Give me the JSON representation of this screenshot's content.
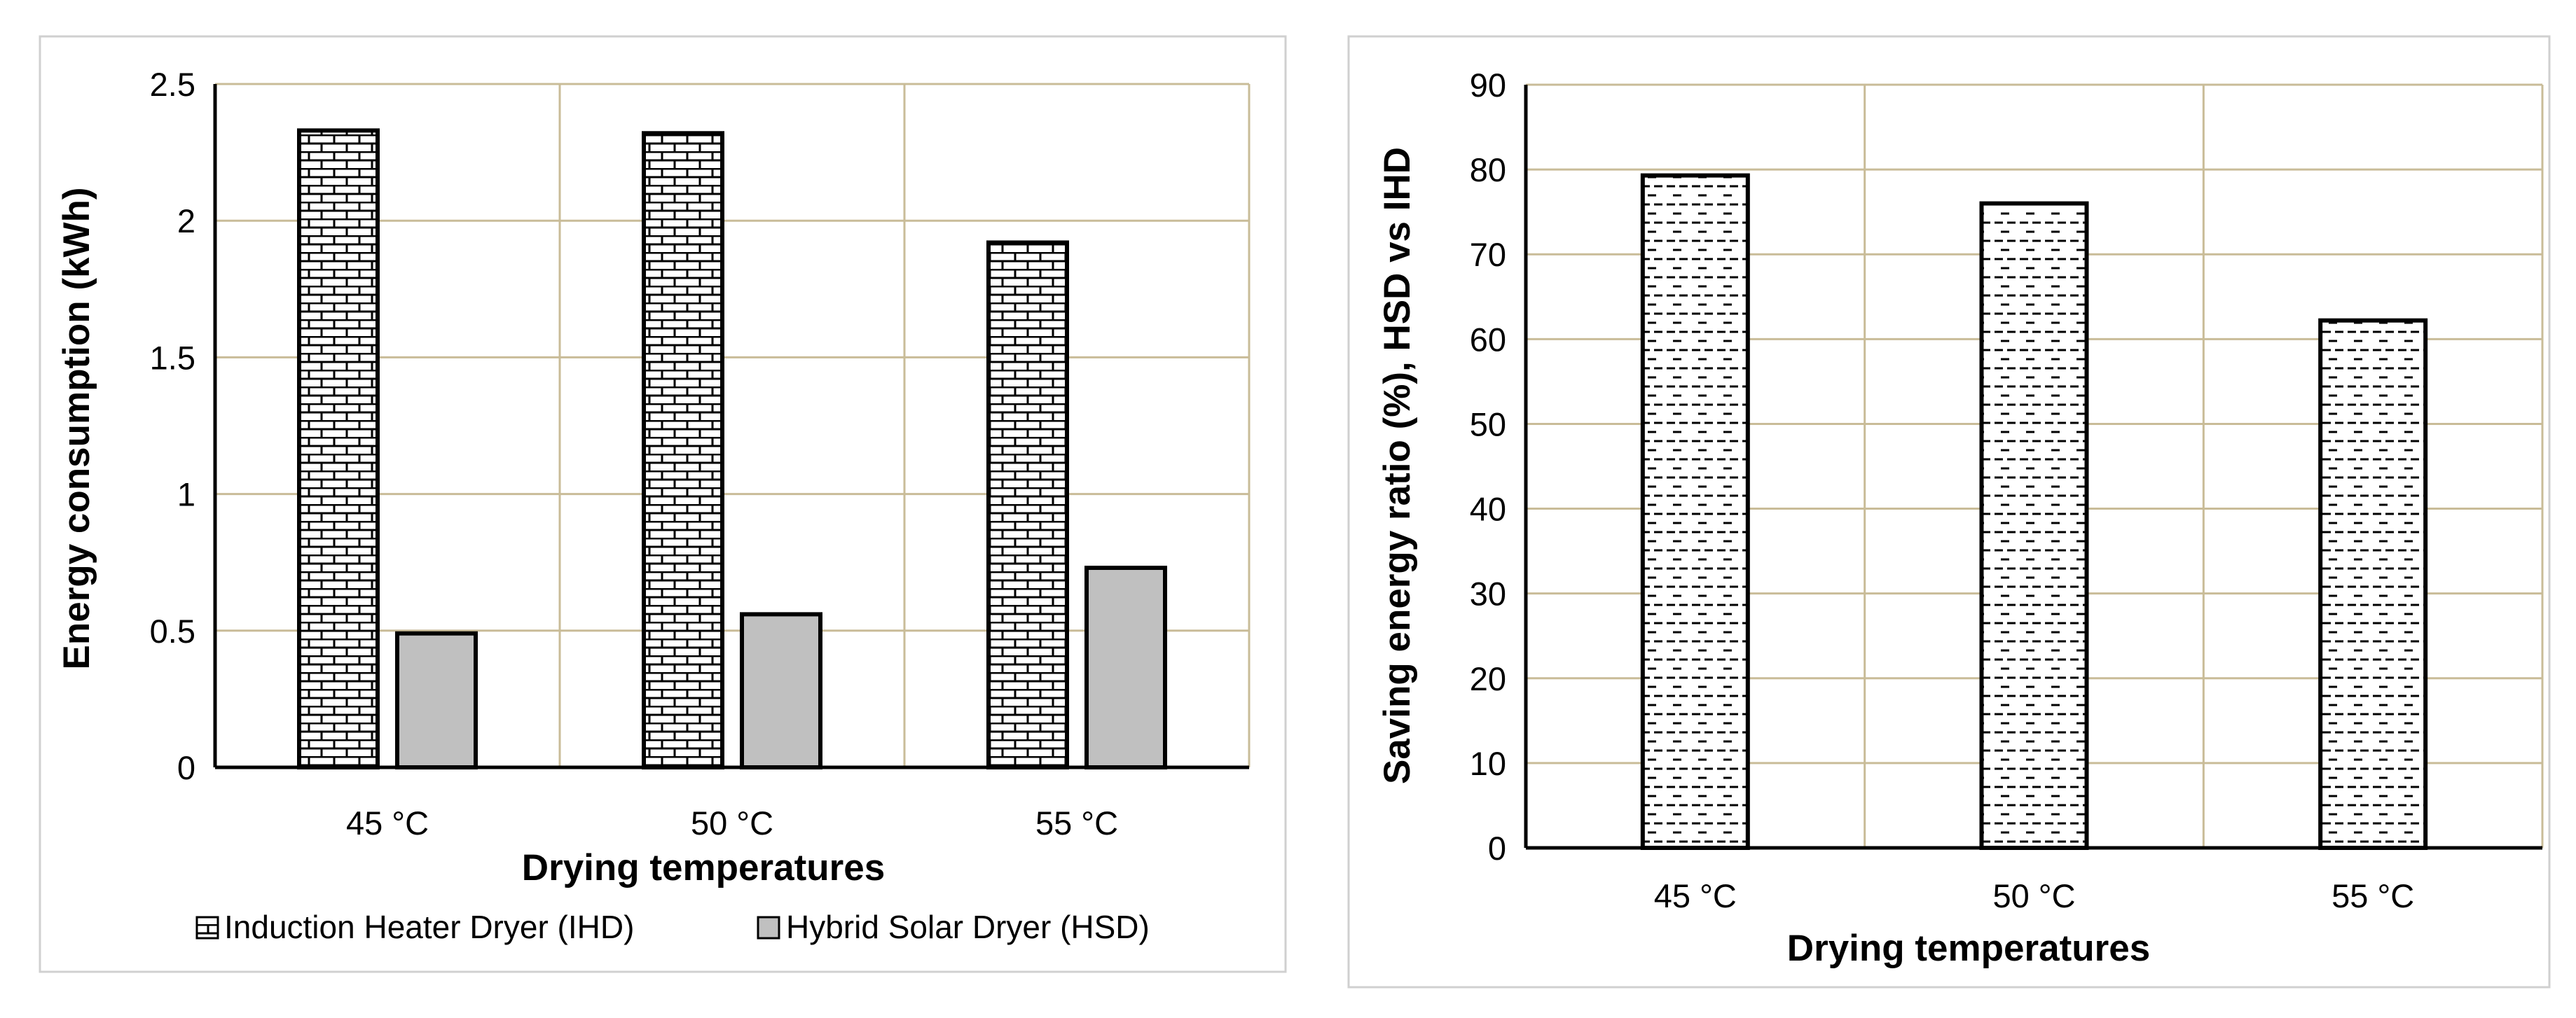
{
  "chart_data": [
    {
      "type": "bar",
      "title": "",
      "xlabel": "Drying temperatures",
      "ylabel": "Energy consumption (kWh)",
      "categories": [
        "45 °C",
        "50 °C",
        "55 °C"
      ],
      "ylim": [
        0,
        2.5
      ],
      "yticks": [
        "0",
        "0.5",
        "1",
        "1.5",
        "2",
        "2.5"
      ],
      "grid": true,
      "legend_position": "bottom",
      "series": [
        {
          "name": "Induction Heater Dryer (IHD)",
          "values": [
            2.33,
            2.32,
            1.92
          ],
          "pattern": "brick"
        },
        {
          "name": "Hybrid Solar Dryer (HSD)",
          "values": [
            0.49,
            0.56,
            0.73
          ],
          "pattern": "solid-gray"
        }
      ]
    },
    {
      "type": "bar",
      "title": "",
      "xlabel": "Drying temperatures",
      "ylabel": "Saving energy ratio (%), HSD vs IHD",
      "categories": [
        "45 °C",
        "50 °C",
        "55 °C"
      ],
      "ylim": [
        0,
        90
      ],
      "yticks": [
        "0",
        "10",
        "20",
        "30",
        "40",
        "50",
        "60",
        "70",
        "80",
        "90"
      ],
      "grid": true,
      "series": [
        {
          "name": "Saving energy ratio",
          "values": [
            79.3,
            76,
            62.2
          ],
          "pattern": "dashes"
        }
      ]
    }
  ],
  "colors": {
    "grid": "#c9bc98",
    "frame": "#d0d0d0",
    "hsd_fill": "#c0c0c0",
    "bar_stroke": "#000000"
  }
}
